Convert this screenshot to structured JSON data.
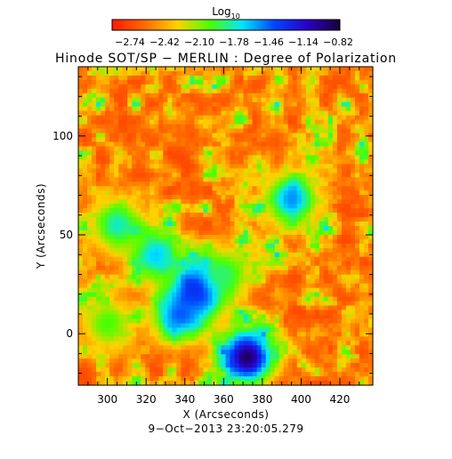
{
  "chart_data": {
    "type": "heatmap",
    "title": "Hinode SOT/SP − MERLIN : Degree of Polarization",
    "xlabel": "X (Arcseconds)",
    "ylabel": "Y (Arcseconds)",
    "footer": "9−Oct−2013 23:20:05.279",
    "xlim": [
      285,
      437
    ],
    "ylim": [
      -26,
      135
    ],
    "x_ticks": [
      300,
      320,
      340,
      360,
      380,
      400,
      420
    ],
    "y_ticks": [
      0,
      50,
      100
    ],
    "grid": false,
    "colorbar": {
      "label": "Log",
      "label_sub": "10",
      "range": [
        -2.74,
        -0.82
      ],
      "ticks": [
        "−2.74",
        "−2.42",
        "−2.10",
        "−1.78",
        "−1.46",
        "−1.14",
        "−0.82"
      ],
      "colors": [
        "#ff1a00",
        "#ff6a00",
        "#ffd200",
        "#4dff00",
        "#00e5ff",
        "#0044ff",
        "#2a00c8",
        "#160033"
      ]
    },
    "value_hotspots": [
      {
        "x": 347,
        "y": 22,
        "value": -1.0
      },
      {
        "x": 372,
        "y": -12,
        "value": -0.9
      },
      {
        "x": 338,
        "y": 10,
        "value": -1.4
      },
      {
        "x": 325,
        "y": 40,
        "value": -1.6
      },
      {
        "x": 395,
        "y": 68,
        "value": -1.5
      },
      {
        "x": 305,
        "y": 55,
        "value": -1.7
      },
      {
        "x": 360,
        "y": 30,
        "value": -1.8
      },
      {
        "x": 300,
        "y": 5,
        "value": -1.9
      }
    ]
  }
}
